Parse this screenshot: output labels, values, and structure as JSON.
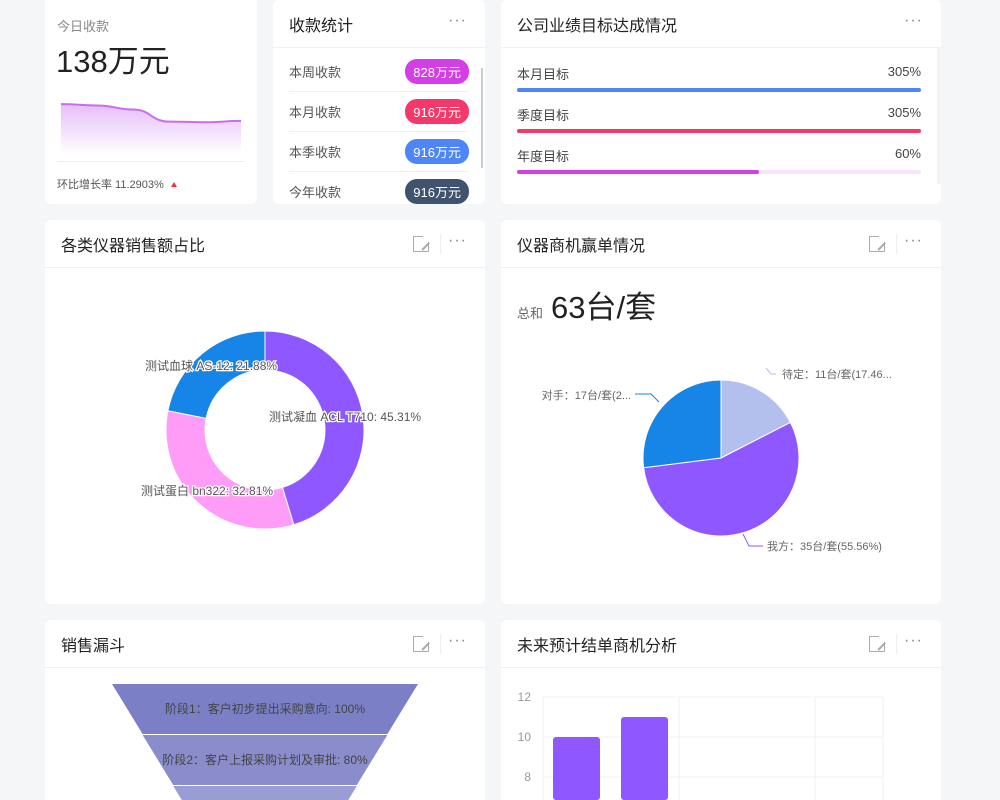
{
  "today": {
    "title": "今日收款",
    "value": "138万元",
    "growth_label": "环比增长率 11.2903%",
    "trend": [
      0.82,
      0.8,
      0.74,
      0.56,
      0.55,
      0.57
    ],
    "color": "#c86df0"
  },
  "collection": {
    "title": "收款统计",
    "items": [
      {
        "label": "本周收款",
        "value": "828万元",
        "color": "#d43ee6"
      },
      {
        "label": "本月收款",
        "value": "916万元",
        "color": "#f5386a"
      },
      {
        "label": "本季收款",
        "value": "916万元",
        "color": "#4f86f7"
      },
      {
        "label": "今年收款",
        "value": "916万元",
        "color": "#3f536e"
      }
    ]
  },
  "goals": {
    "title": "公司业绩目标达成情况",
    "items": [
      {
        "label": "本月目标",
        "value": "305%",
        "percent": 305,
        "color": "#4f86f7",
        "track": "#e6eefe"
      },
      {
        "label": "季度目标",
        "value": "305%",
        "percent": 305,
        "color": "#f5386a",
        "track": "#fde3ea"
      },
      {
        "label": "年度目标",
        "value": "60%",
        "percent": 60,
        "color": "#d43ee6",
        "track": "#f8e3fb"
      }
    ]
  },
  "donut": {
    "title": "各类仪器销售额占比",
    "chart_data": {
      "type": "pie",
      "variant": "donut",
      "slices": [
        {
          "name": "测试凝血 ACL T710",
          "value": 45.31,
          "label": "测试凝血 ACL T710: 45.31%",
          "color": "#8f57ff"
        },
        {
          "name": "测试蛋白 bn322",
          "value": 32.81,
          "label": "测试蛋白 bn322: 32.81%",
          "color": "#ff9cf8"
        },
        {
          "name": "测试血球 AS-12",
          "value": 21.88,
          "label": "测试血球 AS-12: 21.88%",
          "color": "#1784e8"
        }
      ]
    }
  },
  "win": {
    "title": "仪器商机赢单情况",
    "total_label": "总和",
    "total_value": "63台/套",
    "chart_data": {
      "type": "pie",
      "slices": [
        {
          "name": "待定",
          "value": 11,
          "label": "待定：11台/套(17.46...",
          "color": "#b3c0ee"
        },
        {
          "name": "我方",
          "value": 35,
          "label": "我方：35台/套(55.56%)",
          "color": "#8f57ff"
        },
        {
          "name": "对手",
          "value": 17,
          "label": "对手：17台/套(2...",
          "color": "#1784e8"
        }
      ]
    }
  },
  "funnel": {
    "title": "销售漏斗",
    "chart_data": {
      "type": "funnel",
      "stages": [
        {
          "label": "阶段1：客户初步提出采购意向: 100%",
          "value": 100,
          "color": "#7b7fc6"
        },
        {
          "label": "阶段2：客户上报采购计划及审批: 80%",
          "value": 80,
          "color": "#8a8ccc"
        },
        {
          "label": "",
          "value": 60,
          "color": "#9a9cd4"
        }
      ]
    }
  },
  "forecast": {
    "title": "未来预计结单商机分析",
    "chart_data": {
      "type": "bar",
      "values": [
        10,
        11
      ],
      "ylim": [
        0,
        12
      ],
      "yticks": [
        "12",
        "10",
        "8"
      ],
      "color": "#8f57ff",
      "grid": true
    }
  }
}
